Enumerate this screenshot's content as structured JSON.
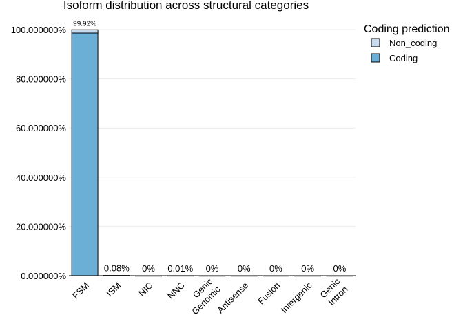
{
  "chart_data": {
    "type": "bar",
    "stacked": true,
    "title": "Isoform distribution across structural categories",
    "xlabel": "",
    "ylabel": "",
    "ylim": [
      0,
      100
    ],
    "yticks": [
      "0.000000%",
      "20.000000%",
      "40.000000%",
      "60.000000%",
      "80.000000%",
      "100.000000%"
    ],
    "ytick_values": [
      0,
      20,
      40,
      60,
      80,
      100
    ],
    "categories": [
      "FSM",
      "ISM",
      "NIC",
      "NNC",
      "Genic\nGenomic",
      "Antisense",
      "Fusion",
      "Intergenic",
      "Genic\nIntron"
    ],
    "category_lines": [
      [
        "FSM"
      ],
      [
        "ISM"
      ],
      [
        "NIC"
      ],
      [
        "NNC"
      ],
      [
        "Genic",
        "Genomic"
      ],
      [
        "Antisense"
      ],
      [
        "Fusion"
      ],
      [
        "Intergenic"
      ],
      [
        "Genic",
        "Intron"
      ]
    ],
    "bar_labels": [
      "99.92%",
      "0.08%",
      "0%",
      "0.01%",
      "0%",
      "0%",
      "0%",
      "0%",
      "0%"
    ],
    "series": [
      {
        "name": "Coding",
        "color": "#6baed6",
        "values": [
          98.6,
          0.07,
          0,
          0.01,
          0,
          0,
          0,
          0,
          0
        ]
      },
      {
        "name": "Non_coding",
        "color": "#c6dbef",
        "values": [
          1.32,
          0.01,
          0,
          0,
          0,
          0,
          0,
          0,
          0
        ]
      }
    ],
    "legend": {
      "title": "Coding prediction",
      "position": "top-right",
      "entries": [
        {
          "label": "Non_coding",
          "color": "#c6dbef"
        },
        {
          "label": "Coding",
          "color": "#6baed6"
        }
      ]
    },
    "grid": true
  }
}
